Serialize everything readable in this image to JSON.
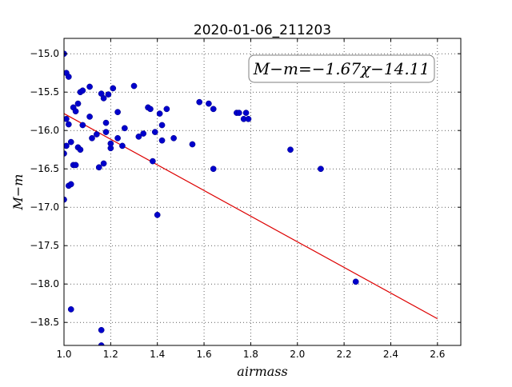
{
  "chart_data": {
    "type": "scatter",
    "title": "2020-01-06_211203",
    "xlabel": "airmass",
    "ylabel": "M−m",
    "xlim": [
      1.0,
      2.7
    ],
    "ylim": [
      -18.8,
      -14.8
    ],
    "y_inverted": true,
    "x_ticks": [
      "1.0",
      "1.2",
      "1.4",
      "1.6",
      "1.8",
      "2.0",
      "2.2",
      "2.4",
      "2.6"
    ],
    "x_tick_values": [
      1.0,
      1.2,
      1.4,
      1.6,
      1.8,
      2.0,
      2.2,
      2.4,
      2.6
    ],
    "y_ticks": [
      "−15.0",
      "−15.5",
      "−16.0",
      "−16.5",
      "−17.0",
      "−17.5",
      "−18.0",
      "−18.5"
    ],
    "y_tick_values": [
      -15.0,
      -15.5,
      -16.0,
      -16.5,
      -17.0,
      -17.5,
      -18.0,
      -18.5
    ],
    "grid": true,
    "annotation": "M−m=−1.67χ−14.11",
    "point_color": "#0000cc",
    "line_color": "#dd0000",
    "fit": {
      "slope": -1.67,
      "intercept": -14.11,
      "x_range": [
        1.0,
        2.6
      ]
    },
    "series": [
      {
        "points": [
          [
            1.0,
            -15.0
          ],
          [
            1.0,
            -16.9
          ],
          [
            1.0,
            -16.3
          ],
          [
            1.01,
            -15.25
          ],
          [
            1.01,
            -15.85
          ],
          [
            1.01,
            -16.2
          ],
          [
            1.02,
            -15.3
          ],
          [
            1.02,
            -16.72
          ],
          [
            1.02,
            -15.92
          ],
          [
            1.03,
            -16.15
          ],
          [
            1.03,
            -16.7
          ],
          [
            1.03,
            -18.33
          ],
          [
            1.04,
            -15.7
          ],
          [
            1.04,
            -16.45
          ],
          [
            1.05,
            -15.75
          ],
          [
            1.05,
            -16.45
          ],
          [
            1.06,
            -15.65
          ],
          [
            1.06,
            -16.22
          ],
          [
            1.07,
            -16.25
          ],
          [
            1.07,
            -15.5
          ],
          [
            1.08,
            -15.48
          ],
          [
            1.08,
            -15.93
          ],
          [
            1.11,
            -15.43
          ],
          [
            1.11,
            -15.82
          ],
          [
            1.12,
            -16.1
          ],
          [
            1.14,
            -16.05
          ],
          [
            1.15,
            -16.48
          ],
          [
            1.16,
            -18.6
          ],
          [
            1.16,
            -18.8
          ],
          [
            1.16,
            -15.52
          ],
          [
            1.17,
            -15.58
          ],
          [
            1.17,
            -16.43
          ],
          [
            1.18,
            -15.9
          ],
          [
            1.18,
            -16.02
          ],
          [
            1.19,
            -15.53
          ],
          [
            1.2,
            -16.23
          ],
          [
            1.2,
            -16.17
          ],
          [
            1.21,
            -15.45
          ],
          [
            1.23,
            -15.76
          ],
          [
            1.23,
            -16.1
          ],
          [
            1.25,
            -16.2
          ],
          [
            1.26,
            -15.97
          ],
          [
            1.3,
            -15.42
          ],
          [
            1.32,
            -16.08
          ],
          [
            1.34,
            -16.04
          ],
          [
            1.36,
            -15.7
          ],
          [
            1.37,
            -15.72
          ],
          [
            1.38,
            -16.4
          ],
          [
            1.39,
            -16.02
          ],
          [
            1.4,
            -17.1
          ],
          [
            1.41,
            -15.78
          ],
          [
            1.42,
            -15.93
          ],
          [
            1.42,
            -16.13
          ],
          [
            1.44,
            -15.72
          ],
          [
            1.47,
            -16.1
          ],
          [
            1.55,
            -16.18
          ],
          [
            1.58,
            -15.63
          ],
          [
            1.62,
            -15.65
          ],
          [
            1.64,
            -16.5
          ],
          [
            1.64,
            -15.72
          ],
          [
            1.74,
            -15.77
          ],
          [
            1.75,
            -15.77
          ],
          [
            1.77,
            -15.85
          ],
          [
            1.78,
            -15.77
          ],
          [
            1.79,
            -15.85
          ],
          [
            1.97,
            -16.25
          ],
          [
            2.1,
            -16.5
          ],
          [
            2.25,
            -17.97
          ]
        ]
      }
    ]
  }
}
